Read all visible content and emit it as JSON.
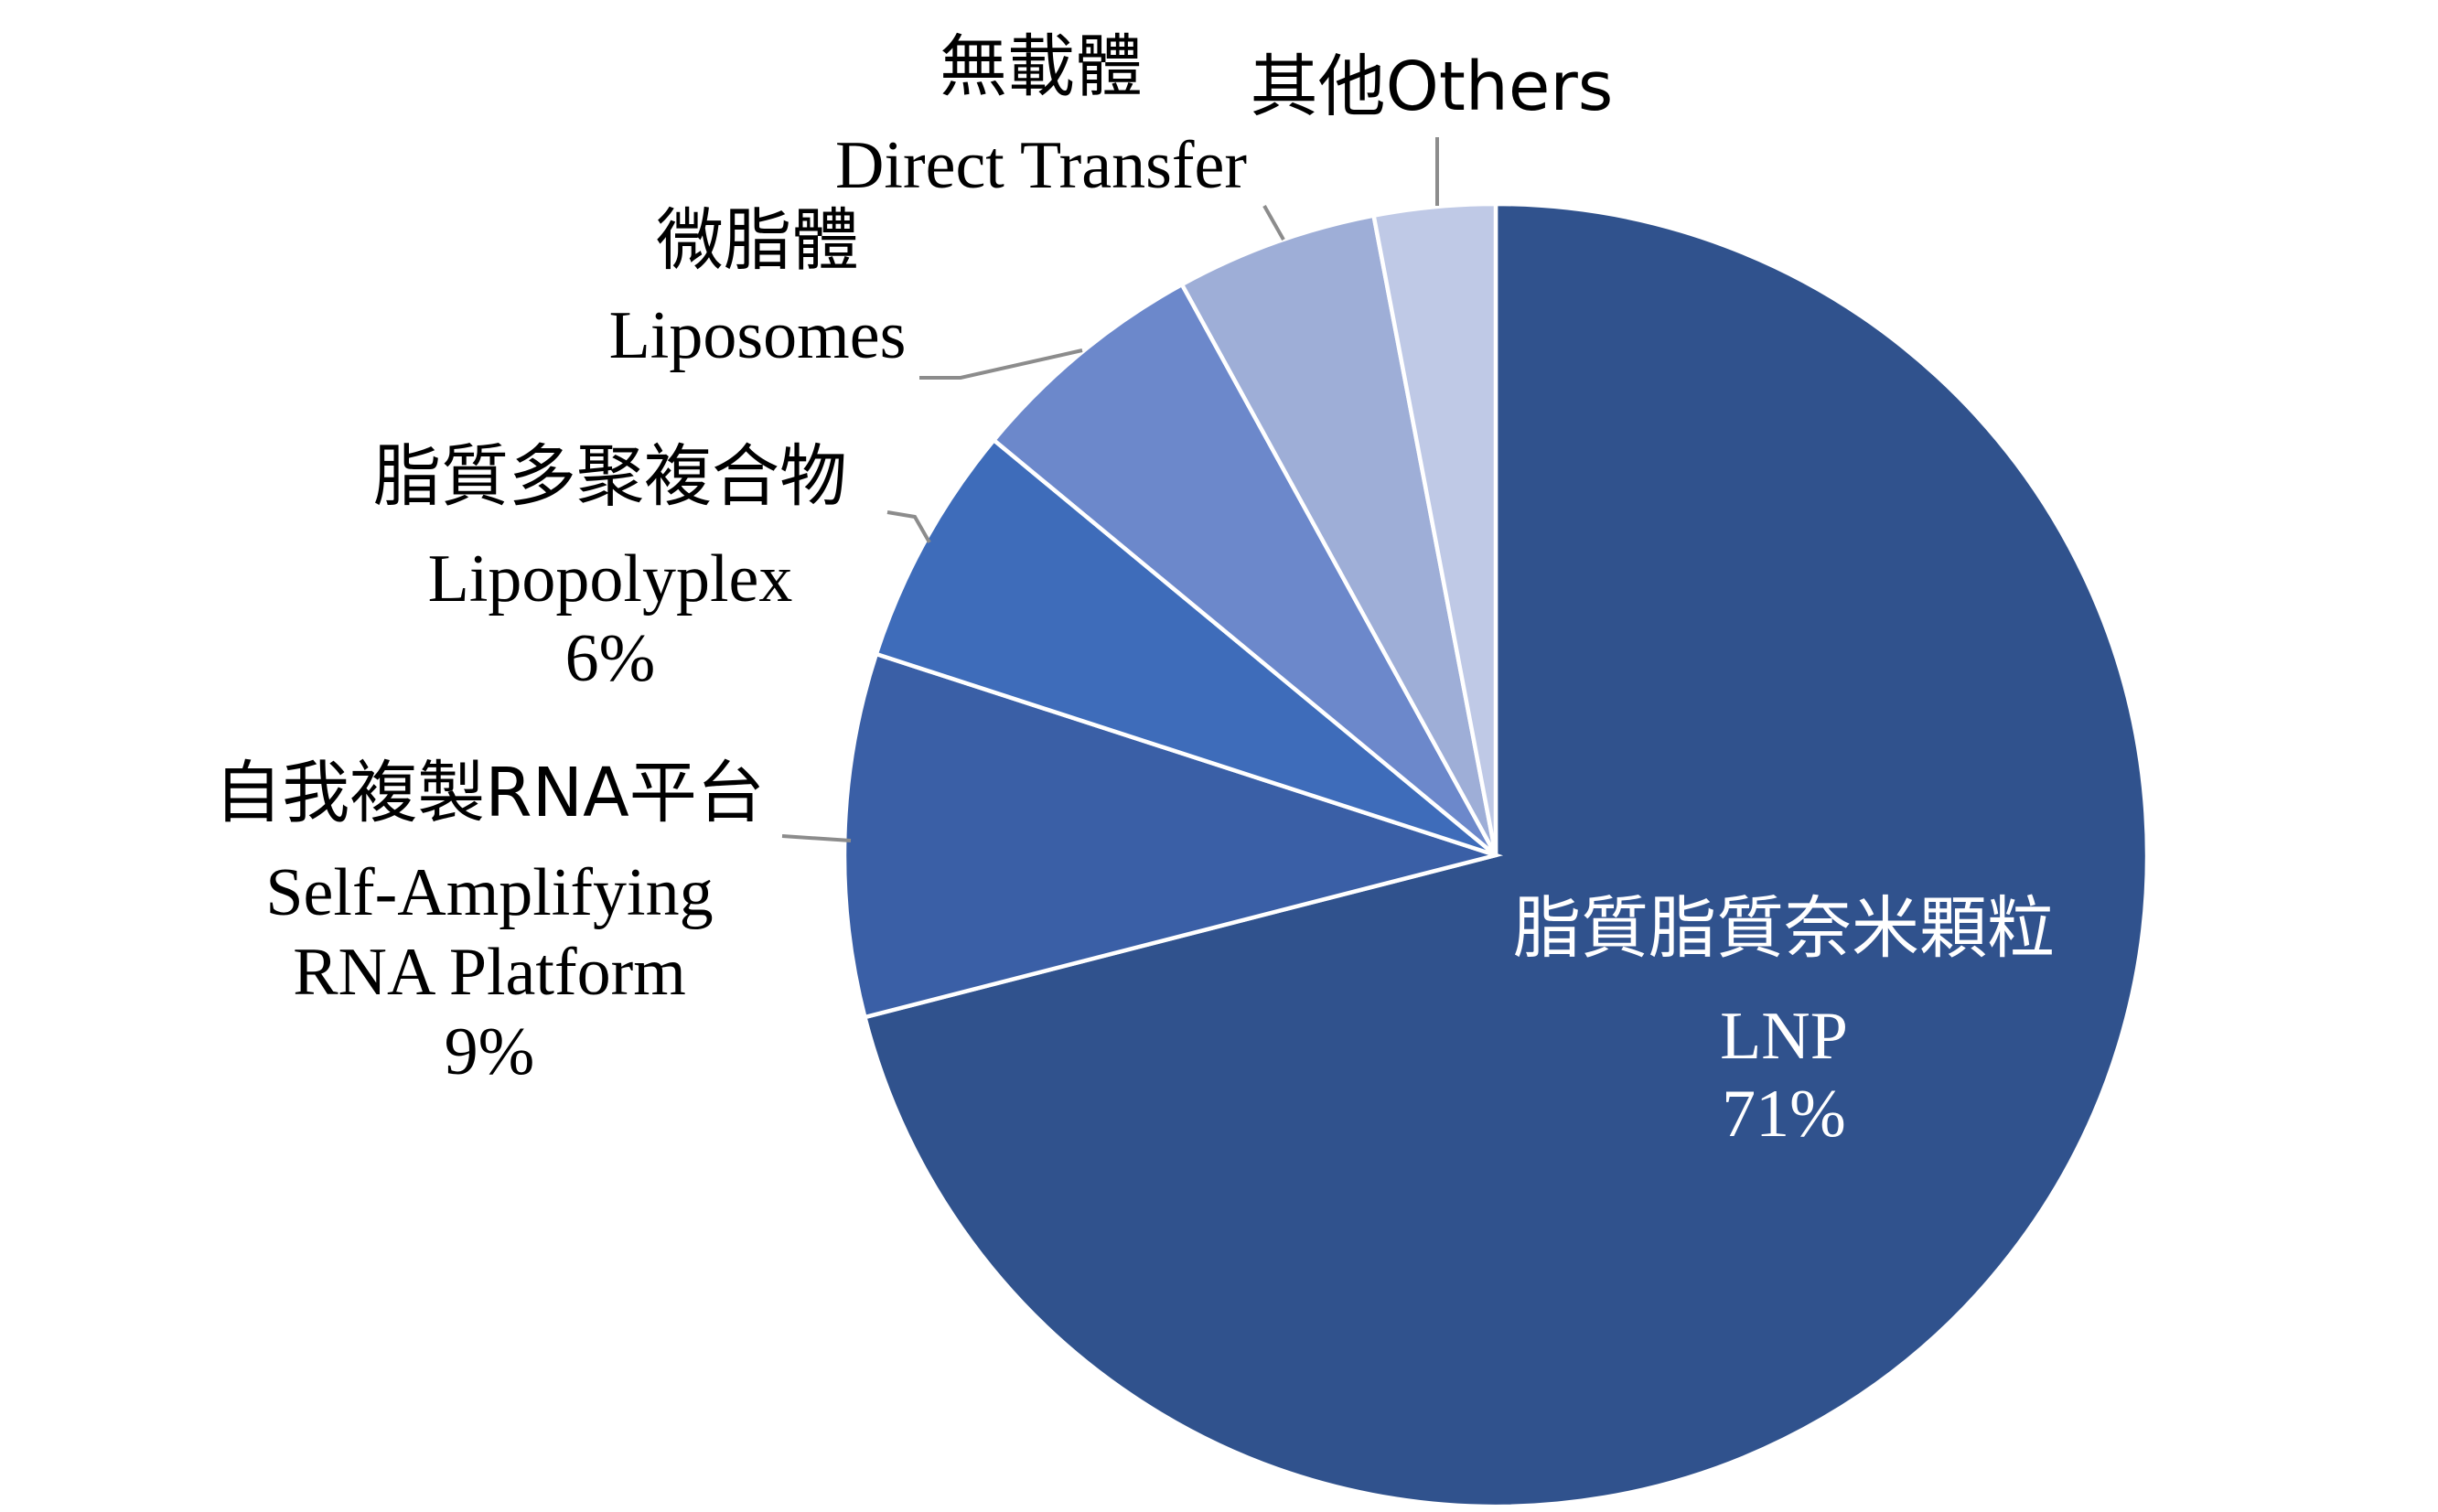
{
  "chart_data": {
    "type": "pie",
    "title": "",
    "slices": [
      {
        "label_zh": "脂質脂質奈米顆粒",
        "label_en": [
          "LNP"
        ],
        "value": 71,
        "value_label": "71%",
        "color": "#30528d"
      },
      {
        "label_zh": "自我複製RNA平台",
        "label_en": [
          "Self-Amplifying",
          "RNA Platform"
        ],
        "value": 9,
        "value_label": "9%",
        "color": "#3a5fa6"
      },
      {
        "label_zh": "脂質多聚複合物",
        "label_en": [
          "Lipopolyplex"
        ],
        "value": 6,
        "value_label": "6%",
        "color": "#3e6cba"
      },
      {
        "label_zh": "微脂體",
        "label_en": [
          "Liposomes"
        ],
        "value": 6,
        "value_label": "",
        "color": "#6c88cb"
      },
      {
        "label_zh": "無載體",
        "label_en": [
          "Direct Transfer"
        ],
        "value": 5,
        "value_label": "",
        "color": "#9eaed7"
      },
      {
        "label_zh": "其他Others",
        "label_en": [],
        "value": 3,
        "value_label": "",
        "color": "#bfc9e6"
      }
    ]
  }
}
